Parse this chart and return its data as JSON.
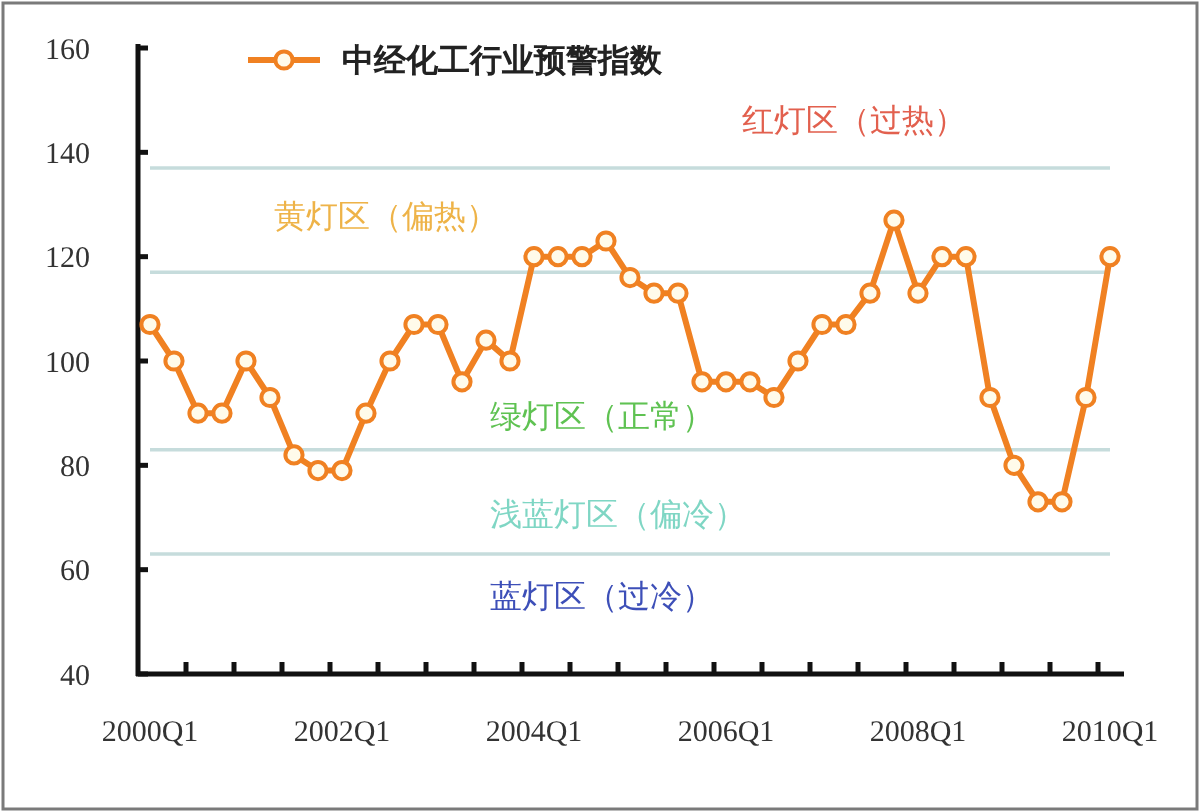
{
  "chart_data": {
    "type": "line",
    "categories": [
      "2000Q1",
      null,
      null,
      null,
      null,
      null,
      null,
      null,
      "2002Q1",
      null,
      null,
      null,
      null,
      null,
      null,
      null,
      "2004Q1",
      null,
      null,
      null,
      null,
      null,
      null,
      null,
      "2006Q1",
      null,
      null,
      null,
      null,
      null,
      null,
      null,
      "2008Q1",
      null,
      null,
      null,
      null,
      null,
      null,
      null,
      "2010Q1"
    ],
    "series": [
      {
        "name": "中经化工行业预警指数",
        "color": "#f08122",
        "values": [
          107,
          100,
          90,
          90,
          100,
          93,
          82,
          79,
          79,
          90,
          100,
          107,
          107,
          96,
          104,
          100,
          120,
          120,
          120,
          123,
          116,
          113,
          113,
          96,
          96,
          96,
          93,
          100,
          107,
          107,
          113,
          127,
          113,
          120,
          120,
          93,
          80,
          73,
          73,
          93,
          120
        ]
      }
    ],
    "ylim": [
      40,
      160
    ],
    "yticks": [
      40,
      60,
      80,
      100,
      120,
      140,
      160
    ],
    "legend": "top left",
    "marker": "circle",
    "line_style": "solid",
    "ref_lines": [
      {
        "axis": "y",
        "value": 137,
        "color": "#c6dcdc"
      },
      {
        "axis": "y",
        "value": 117,
        "color": "#c6dcdc"
      },
      {
        "axis": "y",
        "value": 83,
        "color": "#c6dcdc"
      },
      {
        "axis": "y",
        "value": 63,
        "color": "#c6dcdc"
      }
    ],
    "annotations": [
      "红灯区（过热）",
      "黄灯区（偏热）",
      "绿灯区（正常）",
      "浅蓝灯区（偏冷）",
      "蓝灯区（过冷）"
    ]
  }
}
